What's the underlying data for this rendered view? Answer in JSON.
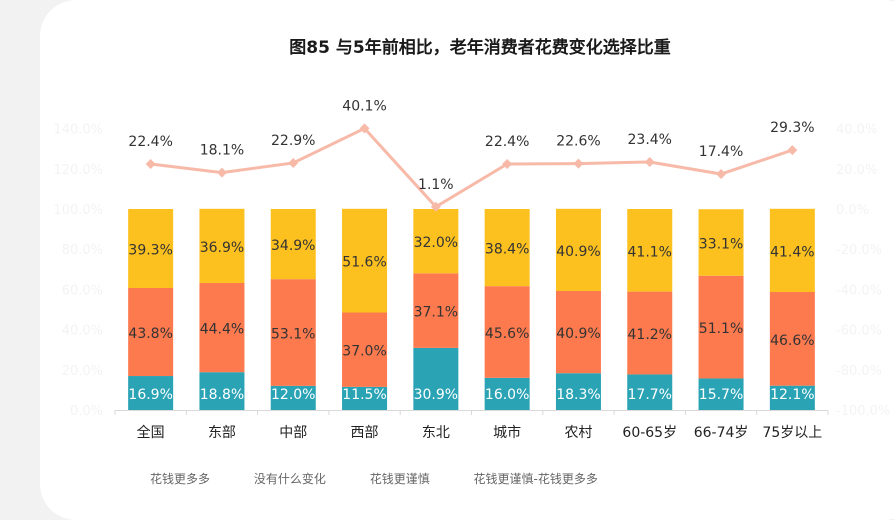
{
  "chart_data": {
    "type": "bar",
    "title": "图85 与5年前相比，老年消费者花费变化选择比重",
    "categories": [
      "全国",
      "东部",
      "中部",
      "西部",
      "东北",
      "城市",
      "农村",
      "60-65岁",
      "66-74岁",
      "75岁以上"
    ],
    "stacked": true,
    "series": [
      {
        "name": "bottom",
        "color": "#2aa3b5",
        "values": [
          16.9,
          18.8,
          12.0,
          11.5,
          30.9,
          16.0,
          18.3,
          17.7,
          15.7,
          12.1
        ]
      },
      {
        "name": "middle",
        "color": "#fd7a4f",
        "values": [
          43.8,
          44.4,
          53.1,
          37.0,
          37.1,
          45.6,
          40.9,
          41.2,
          51.1,
          46.6
        ]
      },
      {
        "name": "top",
        "color": "#fdc11f",
        "values": [
          39.3,
          36.9,
          34.9,
          51.6,
          32.0,
          38.4,
          40.9,
          41.1,
          33.1,
          41.4
        ]
      },
      {
        "name": "line",
        "color": "#f7b9a8",
        "type": "line",
        "axis": "right",
        "values": [
          22.4,
          18.1,
          22.9,
          40.1,
          1.1,
          22.4,
          22.6,
          23.4,
          17.4,
          29.3
        ]
      }
    ],
    "left_axis": {
      "ticks": [
        "0.0%",
        "20.0%",
        "40.0%",
        "60.0%",
        "80.0%",
        "100.0%",
        "120.0%",
        "140.0%"
      ],
      "range": [
        0,
        140
      ]
    },
    "right_axis": {
      "ticks": [
        "-100.0%",
        "-80.0%",
        "-60.0%",
        "-40.0%",
        "-20.0%",
        "0.0%",
        "20.0%",
        "40.0%"
      ],
      "range": [
        -100,
        40
      ]
    },
    "legend": [
      "花钱更多多",
      "没有什么变化",
      "花钱更谨慎",
      "花钱更谨慎-花钱更多多"
    ]
  }
}
